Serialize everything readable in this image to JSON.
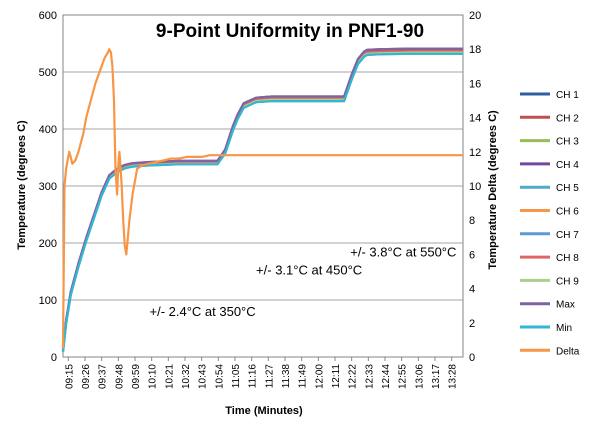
{
  "chart_data": {
    "type": "line",
    "title": "9-Point Uniformity in PNF1-90",
    "xlabel": "Time (Minutes)",
    "ylabel": "Temperature (degrees C)",
    "y2label": "Temperature Delta (degrees C)",
    "ylim": [
      0,
      600
    ],
    "y2lim": [
      0,
      20
    ],
    "yticks": [
      0,
      100,
      200,
      300,
      400,
      500,
      600
    ],
    "y2ticks": [
      0,
      2,
      4,
      6,
      8,
      10,
      12,
      14,
      16,
      18,
      20
    ],
    "xrange_minutes": [
      555,
      814
    ],
    "xticks": [
      "09:15",
      "09:26",
      "09:37",
      "09:48",
      "09:59",
      "10:10",
      "10:21",
      "10:32",
      "10:43",
      "10:54",
      "11:05",
      "11:16",
      "11:27",
      "11:38",
      "11:49",
      "12:00",
      "12:11",
      "12:22",
      "12:33",
      "12:44",
      "12:55",
      "13:06",
      "13:17",
      "13:28"
    ],
    "grid": true,
    "legend_position": "right",
    "annotations": [
      {
        "text": "+/- 2.4°C at 350°C",
        "minute": 611,
        "y": 72
      },
      {
        "text": "+/- 3.1°C at 450°C",
        "minute": 680,
        "y": 145
      },
      {
        "text": "+/- 3.8°C at 550°C",
        "minute": 741,
        "y": 176
      }
    ],
    "series": [
      {
        "name": "CH 1",
        "axis": "left",
        "color": "#2E5FA3",
        "x": [
          555,
          557,
          560,
          565,
          570,
          575,
          580,
          585,
          588,
          590,
          595,
          600,
          610,
          620,
          630,
          645,
          655,
          660,
          665,
          668,
          672,
          680,
          690,
          700,
          720,
          737,
          742,
          746,
          750,
          752,
          760,
          780,
          800,
          810,
          814
        ],
        "y": [
          10,
          60,
          110,
          160,
          205,
          245,
          285,
          315,
          322,
          326,
          333,
          336,
          338,
          339,
          340,
          340,
          340,
          360,
          400,
          420,
          440,
          450,
          452,
          452,
          452,
          452,
          490,
          517,
          530,
          533,
          534,
          535,
          535,
          535,
          535
        ]
      },
      {
        "name": "CH 2",
        "axis": "left",
        "color": "#C0504D",
        "x": [
          555,
          557,
          560,
          565,
          570,
          575,
          580,
          585,
          588,
          590,
          595,
          600,
          610,
          620,
          630,
          645,
          655,
          660,
          665,
          668,
          672,
          680,
          690,
          700,
          720,
          737,
          742,
          746,
          750,
          752,
          760,
          780,
          800,
          810,
          814
        ],
        "y": [
          11,
          62,
          112,
          162,
          207,
          247,
          287,
          317,
          324,
          328,
          335,
          338,
          340,
          341,
          342,
          342,
          342,
          362,
          402,
          422,
          442,
          452,
          454,
          454,
          454,
          454,
          493,
          520,
          533,
          536,
          537,
          538,
          538,
          538,
          538
        ]
      },
      {
        "name": "CH 3",
        "axis": "left",
        "color": "#9BBB59",
        "x": [
          555,
          557,
          560,
          565,
          570,
          575,
          580,
          585,
          588,
          590,
          595,
          600,
          610,
          620,
          630,
          645,
          655,
          660,
          665,
          668,
          672,
          680,
          690,
          700,
          720,
          737,
          742,
          746,
          750,
          752,
          760,
          780,
          800,
          810,
          814
        ],
        "y": [
          9,
          58,
          108,
          158,
          203,
          243,
          283,
          313,
          320,
          324,
          331,
          334,
          336,
          337,
          338,
          338,
          338,
          357,
          397,
          417,
          437,
          447,
          449,
          449,
          449,
          449,
          487,
          514,
          527,
          530,
          531,
          532,
          532,
          532,
          532
        ]
      },
      {
        "name": "CH 4",
        "axis": "left",
        "color": "#6E4A9E",
        "x": [
          555,
          557,
          560,
          565,
          570,
          575,
          580,
          585,
          588,
          590,
          595,
          600,
          610,
          620,
          630,
          645,
          655,
          660,
          665,
          668,
          672,
          680,
          690,
          700,
          720,
          737,
          742,
          746,
          750,
          752,
          760,
          780,
          800,
          810,
          814
        ],
        "y": [
          12,
          64,
          114,
          164,
          209,
          249,
          289,
          319,
          326,
          330,
          337,
          340,
          342,
          343,
          344,
          344,
          344,
          364,
          405,
          425,
          445,
          455,
          457,
          457,
          457,
          457,
          496,
          523,
          536,
          539,
          540,
          541,
          541,
          541,
          541
        ]
      },
      {
        "name": "CH 5",
        "axis": "left",
        "color": "#4BACC6",
        "x": [
          555,
          557,
          560,
          565,
          570,
          575,
          580,
          585,
          588,
          590,
          595,
          600,
          610,
          620,
          630,
          645,
          655,
          660,
          665,
          668,
          672,
          680,
          690,
          700,
          720,
          737,
          742,
          746,
          750,
          752,
          760,
          780,
          800,
          810,
          814
        ],
        "y": [
          10,
          59,
          109,
          159,
          204,
          244,
          284,
          314,
          321,
          325,
          332,
          335,
          337,
          338,
          339,
          339,
          339,
          359,
          399,
          419,
          439,
          449,
          451,
          451,
          451,
          451,
          489,
          516,
          529,
          532,
          533,
          534,
          534,
          534,
          534
        ]
      },
      {
        "name": "CH 6",
        "axis": "left",
        "color": "#F79646",
        "x": [
          555,
          557,
          560,
          565,
          570,
          575,
          580,
          585,
          588,
          590,
          595,
          600,
          610,
          620,
          630,
          645,
          655,
          660,
          665,
          668,
          672,
          680,
          690,
          700,
          720,
          737,
          742,
          746,
          750,
          752,
          760,
          780,
          800,
          810,
          814
        ],
        "y": [
          11,
          61,
          111,
          161,
          206,
          246,
          286,
          316,
          323,
          327,
          334,
          337,
          339,
          340,
          341,
          341,
          341,
          361,
          401,
          421,
          441,
          451,
          453,
          453,
          453,
          453,
          491,
          518,
          531,
          534,
          535,
          536,
          536,
          536,
          536
        ]
      },
      {
        "name": "CH 7",
        "axis": "left",
        "color": "#5B9BD5",
        "x": [
          555,
          557,
          560,
          565,
          570,
          575,
          580,
          585,
          588,
          590,
          595,
          600,
          610,
          620,
          630,
          645,
          655,
          660,
          665,
          668,
          672,
          680,
          690,
          700,
          720,
          737,
          742,
          746,
          750,
          752,
          760,
          780,
          800,
          810,
          814
        ],
        "y": [
          10,
          60,
          110,
          160,
          205,
          245,
          285,
          315,
          322,
          326,
          333,
          336,
          338,
          339,
          340,
          340,
          340,
          360,
          400,
          420,
          440,
          450,
          452,
          452,
          452,
          452,
          490,
          517,
          530,
          533,
          534,
          535,
          535,
          535,
          535
        ]
      },
      {
        "name": "CH 8",
        "axis": "left",
        "color": "#E06666",
        "x": [
          555,
          557,
          560,
          565,
          570,
          575,
          580,
          585,
          588,
          590,
          595,
          600,
          610,
          620,
          630,
          645,
          655,
          660,
          665,
          668,
          672,
          680,
          690,
          700,
          720,
          737,
          742,
          746,
          750,
          752,
          760,
          780,
          800,
          810,
          814
        ],
        "y": [
          11,
          61,
          111,
          161,
          206,
          246,
          286,
          316,
          323,
          327,
          334,
          337,
          339,
          340,
          341,
          341,
          341,
          361,
          401,
          421,
          441,
          451,
          453,
          453,
          453,
          453,
          491,
          518,
          531,
          534,
          535,
          536,
          536,
          536,
          536
        ]
      },
      {
        "name": "CH 9",
        "axis": "left",
        "color": "#A9D18E",
        "x": [
          555,
          557,
          560,
          565,
          570,
          575,
          580,
          585,
          588,
          590,
          595,
          600,
          610,
          620,
          630,
          645,
          655,
          660,
          665,
          668,
          672,
          680,
          690,
          700,
          720,
          737,
          742,
          746,
          750,
          752,
          760,
          780,
          800,
          810,
          814
        ],
        "y": [
          10,
          59,
          109,
          159,
          204,
          244,
          284,
          314,
          321,
          325,
          332,
          335,
          337,
          338,
          339,
          339,
          339,
          359,
          399,
          419,
          439,
          449,
          451,
          451,
          451,
          451,
          489,
          516,
          529,
          532,
          533,
          534,
          534,
          534,
          534
        ]
      },
      {
        "name": "Max",
        "axis": "left",
        "color": "#8064A2",
        "x": [
          555,
          557,
          560,
          565,
          570,
          575,
          580,
          585,
          588,
          590,
          595,
          600,
          610,
          620,
          630,
          645,
          655,
          660,
          665,
          668,
          672,
          680,
          690,
          700,
          720,
          737,
          742,
          746,
          750,
          752,
          760,
          780,
          800,
          810,
          814
        ],
        "y": [
          12,
          64,
          114,
          164,
          209,
          249,
          289,
          319,
          326,
          330,
          337,
          340,
          342,
          343,
          344,
          344,
          344,
          364,
          405,
          425,
          445,
          455,
          457,
          457,
          457,
          457,
          496,
          523,
          536,
          539,
          540,
          541,
          541,
          541,
          541
        ]
      },
      {
        "name": "Min",
        "axis": "left",
        "color": "#31B6D6",
        "x": [
          555,
          557,
          560,
          565,
          570,
          575,
          580,
          585,
          588,
          590,
          595,
          600,
          610,
          620,
          630,
          645,
          655,
          660,
          665,
          668,
          672,
          680,
          690,
          700,
          720,
          737,
          742,
          746,
          750,
          752,
          760,
          780,
          800,
          810,
          814
        ],
        "y": [
          9,
          58,
          108,
          158,
          203,
          243,
          283,
          313,
          320,
          324,
          331,
          334,
          336,
          337,
          338,
          338,
          338,
          357,
          397,
          417,
          437,
          447,
          449,
          449,
          449,
          449,
          487,
          514,
          527,
          530,
          531,
          532,
          532,
          532,
          532
        ]
      },
      {
        "name": "Delta",
        "axis": "right",
        "color": "#F79646",
        "x": [
          555,
          556,
          557,
          558,
          559,
          560,
          561,
          563,
          565,
          568,
          570,
          573,
          576,
          578,
          580,
          582,
          584,
          585,
          586,
          587,
          587.5,
          588,
          588.5,
          589,
          590,
          590.5,
          591,
          591.5,
          592,
          593,
          594,
          595,
          596,
          597,
          598,
          600,
          603,
          606,
          610,
          615,
          620,
          625,
          630,
          635,
          640,
          645,
          650,
          653,
          654,
          655,
          655.5,
          656,
          657,
          658,
          659,
          660,
          661,
          662,
          664,
          666,
          668,
          670,
          673,
          676,
          680,
          685,
          690,
          695,
          700,
          705,
          710,
          715,
          720,
          722,
          723,
          723.5,
          724,
          725,
          726,
          728,
          730,
          732,
          734,
          736,
          738,
          740,
          742,
          744,
          746,
          748,
          750,
          754,
          758,
          762,
          766,
          770,
          774,
          778,
          782,
          786,
          790,
          794,
          798,
          802,
          806,
          810,
          814
        ],
        "y": [
          0.5,
          10,
          11,
          11.5,
          12,
          11.7,
          11.3,
          11.5,
          12,
          13,
          14,
          15,
          16,
          16.5,
          17,
          17.5,
          17.8,
          18,
          17.8,
          17,
          16,
          15,
          13,
          11,
          9.5,
          10.5,
          11.5,
          12,
          11.5,
          10,
          8,
          6.5,
          6,
          7,
          8,
          9.5,
          11,
          11.2,
          11.3,
          11.4,
          11.5,
          11.6,
          11.6,
          11.7,
          11.7,
          11.7,
          11.8,
          11.8,
          11.8,
          11.8,
          11.8,
          11.8,
          11.8,
          11.8,
          11.8,
          11.8,
          11.8,
          11.8,
          11.8,
          11.8,
          11.8,
          11.8,
          11.8,
          11.8,
          11.8,
          11.8,
          11.8,
          11.8,
          11.8,
          11.8,
          11.8,
          11.8,
          11.8,
          11.8,
          11.8,
          11.8,
          11.8,
          11.8,
          11.8,
          11.8,
          11.8,
          11.8,
          11.8,
          11.8,
          11.8,
          11.8,
          11.8,
          11.8,
          11.8,
          11.8,
          11.8,
          11.8,
          11.8,
          11.8,
          11.8,
          11.8,
          11.8,
          11.8,
          11.8,
          11.8,
          11.8,
          11.8,
          11.8,
          11.8,
          11.8,
          11.8,
          11.8
        ]
      }
    ]
  }
}
